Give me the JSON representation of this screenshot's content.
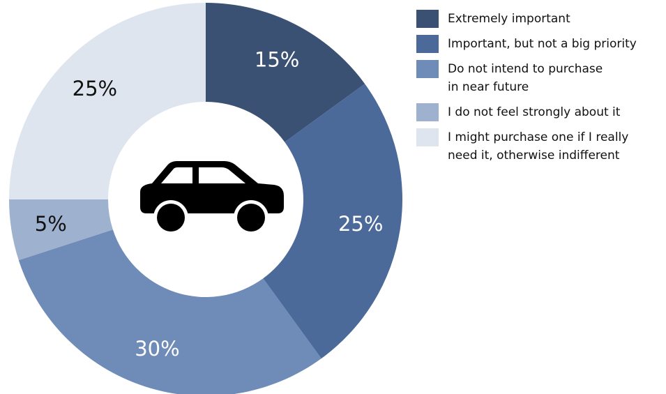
{
  "chart_data": {
    "type": "pie",
    "variant": "donut",
    "title": "",
    "center_icon": "car-icon",
    "slices": [
      {
        "label": [
          "Extremely important"
        ],
        "value": 15,
        "display": "15%",
        "color": "#3b5174",
        "text_color": "#ffffff"
      },
      {
        "label": [
          "Important, but not a big priority"
        ],
        "value": 25,
        "display": "25%",
        "color": "#4b6a9a",
        "text_color": "#ffffff"
      },
      {
        "label": [
          "Do not intend to purchase",
          "in near future"
        ],
        "value": 30,
        "display": "30%",
        "color": "#6e8cb7",
        "text_color": "#ffffff"
      },
      {
        "label": [
          "I do not feel strongly about it"
        ],
        "value": 5,
        "display": "5%",
        "color": "#9eb1cf",
        "text_color": "#111111"
      },
      {
        "label": [
          "I might purchase one if I really",
          "need it, otherwise indifferent"
        ],
        "value": 25,
        "display": "25%",
        "color": "#dfe5ef",
        "text_color": "#111111"
      }
    ],
    "legend_position": "right",
    "start_angle": "12 o'clock",
    "direction": "clockwise"
  }
}
